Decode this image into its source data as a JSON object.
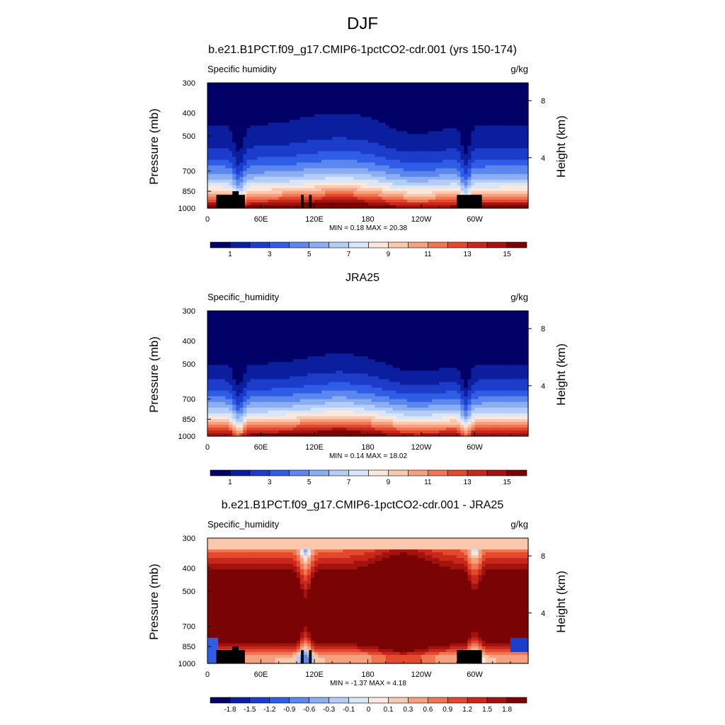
{
  "title": "DJF",
  "colors": {
    "abs_levels": [
      "#000066",
      "#0b1e9e",
      "#1b3dc9",
      "#2f5de6",
      "#5b87ef",
      "#8baef3",
      "#b4cdf7",
      "#d7e6fa",
      "#fbe8dc",
      "#f9c8ad",
      "#f5a07f",
      "#ef7652",
      "#e3492c",
      "#c8271a",
      "#a4130f",
      "#7a0404"
    ],
    "diff_levels": [
      "#000066",
      "#0b1e9e",
      "#1b3dc9",
      "#2f5de6",
      "#5b87ef",
      "#8baef3",
      "#b4cdf7",
      "#d7e6fa",
      "#fbe8dc",
      "#f9c8ad",
      "#f5a07f",
      "#ef7652",
      "#e3492c",
      "#c8271a",
      "#a4130f",
      "#7a0404"
    ],
    "terrain": "#000000"
  },
  "chart_data": [
    {
      "type": "heatmap",
      "title": "b.e21.B1PCT.f09_g17.CMIP6-1pctCO2-cdr.001 (yrs 150-174)",
      "variable": "Specific humidity",
      "units": "g/kg",
      "xlabel": "",
      "ylabel": "Pressure (mb)",
      "ylabel_right": "Height (km)",
      "x_ticks": [
        "0",
        "60E",
        "120E",
        "180",
        "120W",
        "60W"
      ],
      "y_ticks": [
        "300",
        "400",
        "500",
        "700",
        "850",
        "1000"
      ],
      "y2_ticks": [
        "8",
        "4"
      ],
      "xlim": [
        0,
        360
      ],
      "ylim": [
        1000,
        300
      ],
      "min_label": "MIN =   0.18  MAX =  20.38",
      "colorbar_labels": [
        "1",
        "3",
        "5",
        "7",
        "9",
        "11",
        "13",
        "15"
      ],
      "contour_levels": [
        1,
        2,
        3,
        4,
        5,
        6,
        7,
        8,
        9,
        10,
        11,
        12,
        13,
        14,
        15
      ],
      "terrain": true
    },
    {
      "type": "heatmap",
      "title": "JRA25",
      "variable": "Specific_humidity",
      "units": "g/kg",
      "xlabel": "",
      "ylabel": "Pressure (mb)",
      "ylabel_right": "Height (km)",
      "x_ticks": [
        "0",
        "60E",
        "120E",
        "180",
        "120W",
        "60W"
      ],
      "y_ticks": [
        "300",
        "400",
        "500",
        "700",
        "850",
        "1000"
      ],
      "y2_ticks": [
        "8",
        "4"
      ],
      "xlim": [
        0,
        360
      ],
      "ylim": [
        1000,
        300
      ],
      "min_label": "MIN =   0.14  MAX =  18.02",
      "colorbar_labels": [
        "1",
        "3",
        "5",
        "7",
        "9",
        "11",
        "13",
        "15"
      ],
      "contour_levels": [
        1,
        2,
        3,
        4,
        5,
        6,
        7,
        8,
        9,
        10,
        11,
        12,
        13,
        14,
        15
      ],
      "terrain": false
    },
    {
      "type": "heatmap",
      "title": "b.e21.B1PCT.f09_g17.CMIP6-1pctCO2-cdr.001 - JRA25",
      "variable": "Specific_humidity",
      "units": "g/kg",
      "xlabel": "",
      "ylabel": "Pressure (mb)",
      "ylabel_right": "Height (km)",
      "x_ticks": [
        "0",
        "60E",
        "120E",
        "180",
        "120W",
        "60W"
      ],
      "y_ticks": [
        "300",
        "400",
        "500",
        "700",
        "850",
        "1000"
      ],
      "y2_ticks": [
        "8",
        "4"
      ],
      "xlim": [
        0,
        360
      ],
      "ylim": [
        1000,
        300
      ],
      "min_label": "MIN =  -1.37  MAX =   4.18",
      "colorbar_labels": [
        "-1.8",
        "-1.5",
        "-1.2",
        "-0.9",
        "-0.6",
        "-0.3",
        "-0.1",
        "0",
        "0.1",
        "0.3",
        "0.6",
        "0.9",
        "1.2",
        "1.5",
        "1.8"
      ],
      "contour_levels": [
        -1.8,
        -1.5,
        -1.2,
        -0.9,
        -0.6,
        -0.3,
        -0.1,
        0,
        0.1,
        0.3,
        0.6,
        0.9,
        1.2,
        1.5,
        1.8
      ],
      "terrain": true
    }
  ]
}
